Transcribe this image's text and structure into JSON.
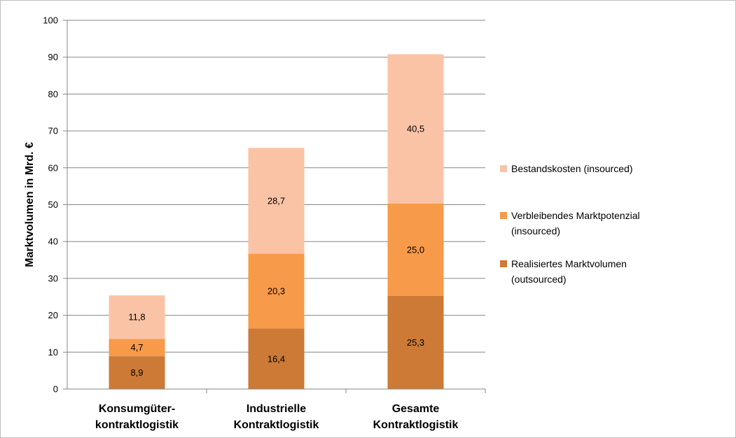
{
  "chart_data": {
    "type": "bar",
    "stacked": true,
    "categories": [
      [
        "Konsumgüter-",
        "kontraktlogistik"
      ],
      [
        "Industrielle",
        "Kontraktlogistik"
      ],
      [
        "Gesamte",
        "Kontraktlogistik"
      ]
    ],
    "series": [
      {
        "name": [
          "Realisiertes Marktvolumen",
          "(outsourced)"
        ],
        "color": "#cc7a36",
        "values": [
          8.9,
          16.4,
          25.3
        ],
        "labels": [
          "8,9",
          "16,4",
          "25,3"
        ]
      },
      {
        "name": [
          "Verbleibendes Marktpotenzial",
          "(insourced)"
        ],
        "color": "#f79a4a",
        "values": [
          4.7,
          20.3,
          25.0
        ],
        "labels": [
          "4,7",
          "20,3",
          "25,0"
        ]
      },
      {
        "name": [
          "Bestandskosten (insourced)"
        ],
        "color": "#fbc3a6",
        "values": [
          11.8,
          28.7,
          40.5
        ],
        "labels": [
          "11,8",
          "28,7",
          "40,5"
        ]
      }
    ],
    "legend_order": [
      2,
      1,
      0
    ],
    "ylabel": "Marktvolumen in Mrd. €",
    "xlabel": "",
    "ylim": [
      0,
      100
    ],
    "yticks": [
      0,
      10,
      20,
      30,
      40,
      50,
      60,
      70,
      80,
      90,
      100
    ],
    "gridlines": true,
    "gridline_color": "#868686",
    "legend_position": "right"
  }
}
